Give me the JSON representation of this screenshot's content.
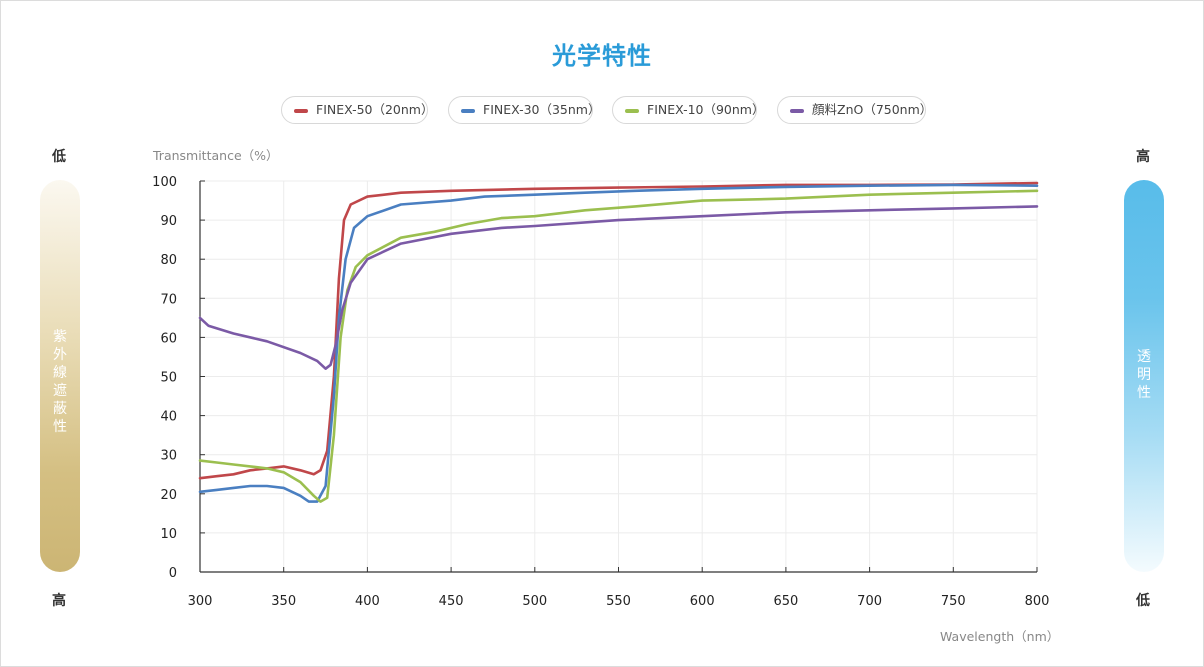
{
  "title": "光学特性",
  "legend": [
    {
      "label": "FINEX-50（20nm）",
      "color": "#c0474a"
    },
    {
      "label": "FINEX-30（35nm）",
      "color": "#4a7fc1"
    },
    {
      "label": "FINEX-10（90nm）",
      "color": "#9bbf4f"
    },
    {
      "label": "顔料ZnO（750nm）",
      "color": "#7b5aa6"
    }
  ],
  "left_scale": {
    "top": "低",
    "bottom": "高",
    "label": "紫外線遮蔽性"
  },
  "right_scale": {
    "top": "高",
    "bottom": "低",
    "label": "透明性"
  },
  "chart_data": {
    "type": "line",
    "title": "光学特性",
    "xlabel": "Wavelength（nm）",
    "ylabel": "Transmittance（%）",
    "xlim": [
      300,
      800
    ],
    "ylim": [
      0,
      100
    ],
    "x_ticks": [
      300,
      350,
      400,
      450,
      500,
      550,
      600,
      650,
      700,
      750,
      800
    ],
    "y_ticks": [
      0,
      10,
      20,
      30,
      40,
      50,
      60,
      70,
      80,
      90,
      100
    ],
    "grid": true,
    "legend_position": "top",
    "series": [
      {
        "name": "FINEX-50（20nm）",
        "color": "#c0474a",
        "points": [
          [
            300,
            24
          ],
          [
            310,
            24.5
          ],
          [
            320,
            25
          ],
          [
            330,
            26
          ],
          [
            340,
            26.5
          ],
          [
            350,
            27
          ],
          [
            360,
            26
          ],
          [
            368,
            25
          ],
          [
            372,
            26
          ],
          [
            376,
            31
          ],
          [
            380,
            50
          ],
          [
            383,
            75
          ],
          [
            386,
            90
          ],
          [
            390,
            94
          ],
          [
            400,
            96
          ],
          [
            420,
            97
          ],
          [
            450,
            97.5
          ],
          [
            500,
            98
          ],
          [
            550,
            98.3
          ],
          [
            600,
            98.6
          ],
          [
            650,
            99
          ],
          [
            700,
            99
          ],
          [
            750,
            99.1
          ],
          [
            800,
            99.5
          ]
        ]
      },
      {
        "name": "FINEX-30（35nm）",
        "color": "#4a7fc1",
        "points": [
          [
            300,
            20.5
          ],
          [
            310,
            21
          ],
          [
            320,
            21.5
          ],
          [
            330,
            22
          ],
          [
            340,
            22
          ],
          [
            350,
            21.5
          ],
          [
            360,
            19.5
          ],
          [
            365,
            18
          ],
          [
            370,
            18
          ],
          [
            375,
            22
          ],
          [
            380,
            45
          ],
          [
            383,
            65
          ],
          [
            387,
            80
          ],
          [
            392,
            88
          ],
          [
            400,
            91
          ],
          [
            420,
            94
          ],
          [
            450,
            95
          ],
          [
            470,
            96
          ],
          [
            500,
            96.5
          ],
          [
            530,
            97
          ],
          [
            560,
            97.5
          ],
          [
            600,
            98
          ],
          [
            650,
            98.5
          ],
          [
            700,
            98.8
          ],
          [
            750,
            99
          ],
          [
            800,
            98.8
          ]
        ]
      },
      {
        "name": "FINEX-10（90nm）",
        "color": "#9bbf4f",
        "points": [
          [
            300,
            28.5
          ],
          [
            310,
            28
          ],
          [
            320,
            27.5
          ],
          [
            330,
            27
          ],
          [
            340,
            26.5
          ],
          [
            350,
            25.5
          ],
          [
            360,
            23
          ],
          [
            368,
            19.5
          ],
          [
            372,
            18
          ],
          [
            376,
            19
          ],
          [
            380,
            35
          ],
          [
            384,
            60
          ],
          [
            388,
            72
          ],
          [
            393,
            78
          ],
          [
            400,
            81
          ],
          [
            420,
            85.5
          ],
          [
            440,
            87
          ],
          [
            460,
            89
          ],
          [
            480,
            90.5
          ],
          [
            500,
            91
          ],
          [
            530,
            92.5
          ],
          [
            560,
            93.5
          ],
          [
            600,
            95
          ],
          [
            650,
            95.5
          ],
          [
            700,
            96.5
          ],
          [
            750,
            97
          ],
          [
            800,
            97.5
          ]
        ]
      },
      {
        "name": "顔料ZnO（750nm）",
        "color": "#7b5aa6",
        "points": [
          [
            300,
            65
          ],
          [
            305,
            63
          ],
          [
            320,
            61
          ],
          [
            340,
            59
          ],
          [
            360,
            56
          ],
          [
            370,
            54
          ],
          [
            375,
            52
          ],
          [
            378,
            53
          ],
          [
            381,
            58
          ],
          [
            385,
            67
          ],
          [
            390,
            74
          ],
          [
            400,
            80
          ],
          [
            420,
            84
          ],
          [
            450,
            86.5
          ],
          [
            480,
            88
          ],
          [
            500,
            88.5
          ],
          [
            550,
            90
          ],
          [
            600,
            91
          ],
          [
            650,
            92
          ],
          [
            700,
            92.5
          ],
          [
            750,
            93
          ],
          [
            800,
            93.5
          ]
        ]
      }
    ]
  }
}
